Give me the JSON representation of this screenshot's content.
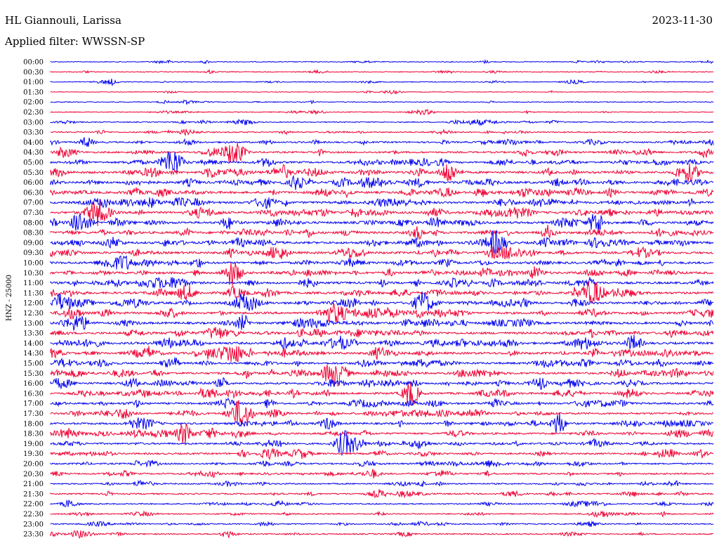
{
  "header": {
    "station": "HL Giannouli, Larissa",
    "date": "2023-11-30",
    "filter": "Applied filter: WWSSN-SP"
  },
  "colors": {
    "trace_a": "#0000ee",
    "trace_b": "#ee0033"
  },
  "chart_data": {
    "type": "line",
    "title": "HL Giannouli, Larissa",
    "ylabel": "HNZ - 25000",
    "trace_labels": [
      "00:00",
      "00:30",
      "01:00",
      "01:30",
      "02:00",
      "02:30",
      "03:00",
      "03:30",
      "04:00",
      "04:30",
      "05:00",
      "05:30",
      "06:00",
      "06:30",
      "07:00",
      "07:30",
      "08:00",
      "08:30",
      "09:00",
      "09:30",
      "10:00",
      "10:30",
      "11:00",
      "11:30",
      "12:00",
      "12:30",
      "13:00",
      "13:30",
      "14:00",
      "14:30",
      "15:00",
      "15:30",
      "16:00",
      "16:30",
      "17:00",
      "17:30",
      "18:00",
      "18:30",
      "19:00",
      "19:30",
      "20:00",
      "20:30",
      "21:00",
      "21:30",
      "22:00",
      "22:30",
      "23:00",
      "23:30"
    ],
    "trace_colors": [
      "blue",
      "red"
    ],
    "activity_level": [
      0.2,
      0.2,
      0.2,
      0.05,
      0.2,
      0.2,
      0.3,
      0.4,
      0.6,
      0.7,
      0.8,
      1.0,
      1.0,
      1.0,
      1.0,
      1.0,
      1.0,
      1.0,
      1.0,
      1.0,
      1.0,
      1.0,
      1.0,
      1.0,
      1.0,
      1.0,
      1.0,
      1.0,
      1.0,
      1.0,
      0.9,
      0.9,
      0.9,
      0.9,
      0.8,
      0.8,
      0.8,
      0.8,
      0.7,
      0.7,
      0.6,
      0.6,
      0.5,
      0.5,
      0.4,
      0.4,
      0.4,
      0.4
    ]
  }
}
